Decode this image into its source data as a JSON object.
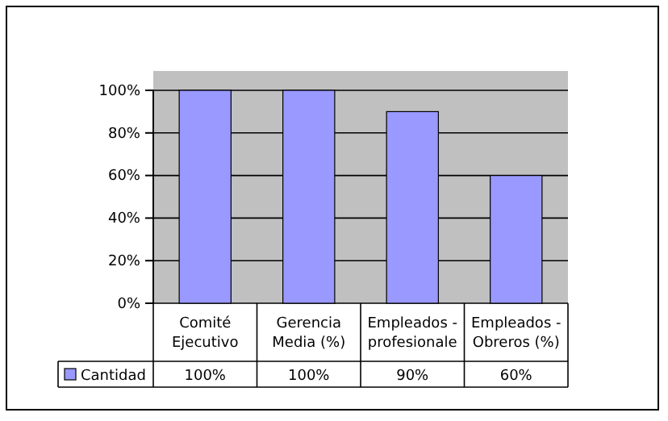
{
  "chart_data": {
    "type": "bar",
    "categories": [
      "Comité Ejecutivo",
      "Gerencia Media (%)",
      "Empleados - profesionale",
      "Empleados - Obreros (%)"
    ],
    "series": [
      {
        "name": "Cantidad",
        "color": "#9999ff",
        "values": [
          100,
          100,
          90,
          60
        ],
        "value_labels": [
          "100%",
          "100%",
          "90%",
          "60%"
        ]
      }
    ],
    "ylim": [
      0,
      100
    ],
    "yticks": [
      {
        "value": 0,
        "label": "0%"
      },
      {
        "value": 20,
        "label": "20%"
      },
      {
        "value": 40,
        "label": "40%"
      },
      {
        "value": 60,
        "label": "60%"
      },
      {
        "value": 80,
        "label": "80%"
      },
      {
        "value": 100,
        "label": "100%"
      }
    ],
    "grid": "y",
    "legend": "bottom"
  }
}
